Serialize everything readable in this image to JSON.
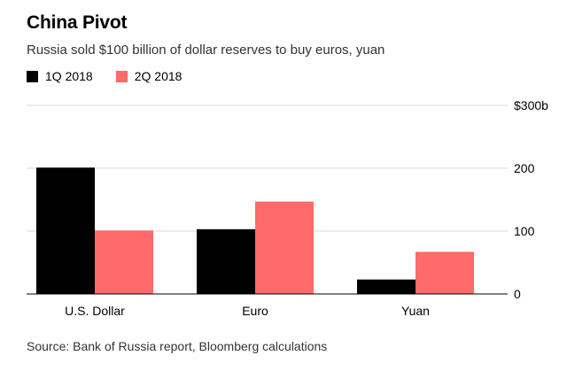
{
  "chart_data": {
    "type": "bar",
    "title": "China Pivot",
    "subtitle": "Russia sold $100 billion of dollar reserves to buy euros, yuan",
    "categories": [
      "U.S. Dollar",
      "Euro",
      "Yuan"
    ],
    "series": [
      {
        "name": "1Q 2018",
        "values": [
          201,
          103,
          23
        ],
        "color": "#000000"
      },
      {
        "name": "2Q 2018",
        "values": [
          101,
          147,
          67
        ],
        "color": "#ff6a6a"
      }
    ],
    "y_ticks": [
      {
        "value": 0,
        "label": "0"
      },
      {
        "value": 100,
        "label": "100"
      },
      {
        "value": 200,
        "label": "200"
      },
      {
        "value": 300,
        "label": "$300b"
      }
    ],
    "ylim": [
      0,
      300
    ],
    "xlabel": "",
    "ylabel": "",
    "grid": true,
    "legend_position": "top-left",
    "source": "Source: Bank of Russia report, Bloomberg calculations"
  }
}
